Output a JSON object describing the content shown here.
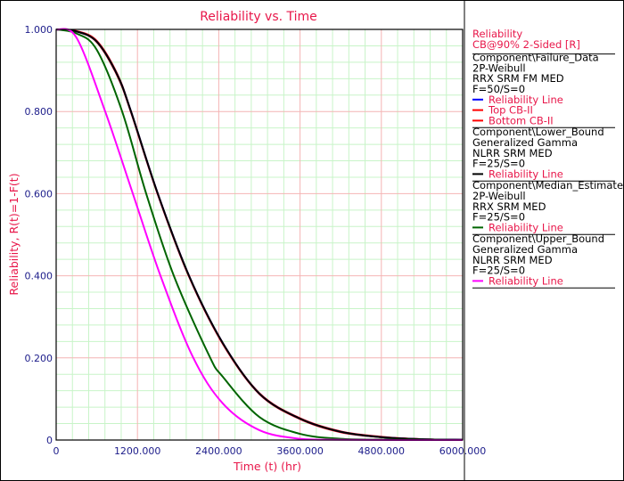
{
  "chart_data": {
    "type": "line",
    "title": "Reliability vs. Time",
    "xlabel": "Time (t) (hr)",
    "ylabel": "Reliability, R(t)=1-F(t)",
    "xlim": [
      0,
      6000
    ],
    "ylim": [
      0,
      1
    ],
    "x_ticks": [
      "0",
      "1200.000",
      "2400.000",
      "3600.000",
      "4800.000",
      "6000.000"
    ],
    "y_ticks": [
      "0",
      "0.200",
      "0.400",
      "0.600",
      "0.800",
      "1.000"
    ],
    "grid": {
      "major": true,
      "minor": true,
      "major_color": "#f4b4b4",
      "minor_color": "#c8f4c8"
    },
    "legend_placement": "right",
    "legend": {
      "header": [
        "Reliability",
        "CB@90% 2-Sided [R]"
      ],
      "groups": [
        {
          "lines": [
            "Component\\Failure_Data",
            "2P-Weibull",
            "RRX SRM FM MED",
            "F=50/S=0"
          ],
          "entries": [
            {
              "label": "Reliability Line",
              "color": "#0000ff"
            },
            {
              "label": "Top CB-II",
              "color": "#ff0000"
            },
            {
              "label": "Bottom CB-II",
              "color": "#ff0000"
            }
          ]
        },
        {
          "lines": [
            "Component\\Lower_Bound",
            "Generalized Gamma",
            "NLRR SRM  MED",
            "F=25/S=0"
          ],
          "entries": [
            {
              "label": "Reliability Line",
              "color": "#000000"
            }
          ]
        },
        {
          "lines": [
            "Component\\Median_Estimate",
            "2P-Weibull",
            "RRX SRM  MED",
            "F=25/S=0"
          ],
          "entries": [
            {
              "label": "Reliability Line",
              "color": "#006400"
            }
          ]
        },
        {
          "lines": [
            "Component\\Upper_Bound",
            "Generalized Gamma",
            "NLRR SRM  MED",
            "F=25/S=0"
          ],
          "entries": [
            {
              "label": "Reliability Line",
              "color": "#ff00ff"
            }
          ]
        }
      ]
    },
    "series": [
      {
        "name": "Component\\Failure_Data Top CB-II",
        "color": "#ff0000",
        "x": [
          0,
          300,
          600,
          900,
          1105,
          1500,
          1961,
          2460,
          3000,
          3600,
          4200,
          4800,
          5400,
          6000
        ],
        "y": [
          1,
          0.996,
          0.972,
          0.892,
          0.8,
          0.6,
          0.4,
          0.236,
          0.114,
          0.053,
          0.021,
          0.008,
          0.002,
          0.0005
        ]
      },
      {
        "name": "Component\\Failure_Data Bottom CB-II",
        "color": "#ff0000",
        "x": [
          0,
          300,
          600,
          900,
          1105,
          1500,
          1961,
          2460,
          3000,
          3600,
          4200,
          4800,
          5400,
          6000
        ],
        "y": [
          1,
          0.995,
          0.969,
          0.888,
          0.798,
          0.598,
          0.398,
          0.234,
          0.112,
          0.051,
          0.019,
          0.007,
          0.002,
          0.0004
        ]
      },
      {
        "name": "Component\\Failure_Data Reliability Line",
        "color": "#0000ff",
        "x": [
          0,
          300,
          600,
          900,
          1105,
          1500,
          1961,
          2460,
          3000,
          3600,
          4200,
          4800,
          5400,
          6000
        ],
        "y": [
          1,
          0.995,
          0.97,
          0.89,
          0.8,
          0.6,
          0.4,
          0.236,
          0.113,
          0.052,
          0.02,
          0.007,
          0.002,
          0.0005
        ]
      },
      {
        "name": "Component\\Lower_Bound",
        "color": "#000000",
        "x": [
          0,
          300,
          600,
          900,
          1105,
          1500,
          1961,
          2460,
          3000,
          3600,
          4200,
          4800,
          5400,
          6000
        ],
        "y": [
          1,
          0.995,
          0.97,
          0.89,
          0.8,
          0.6,
          0.4,
          0.236,
          0.113,
          0.052,
          0.02,
          0.007,
          0.002,
          0.0005
        ]
      },
      {
        "name": "Component\\Median_Estimate",
        "color": "#006400",
        "x": [
          0,
          300,
          600,
          974,
          1329,
          1737,
          2263,
          2460,
          3000,
          3600,
          4200,
          4800,
          6000
        ],
        "y": [
          1,
          0.99,
          0.95,
          0.8,
          0.6,
          0.4,
          0.204,
          0.154,
          0.056,
          0.015,
          0.003,
          0.001,
          0
        ]
      },
      {
        "name": "Component\\Upper_Bound",
        "color": "#ff00ff",
        "x": [
          0,
          300,
          724,
          1132,
          1540,
          2013,
          2460,
          3000,
          3600,
          4200,
          6000
        ],
        "y": [
          1,
          0.98,
          0.8,
          0.6,
          0.4,
          0.204,
          0.089,
          0.024,
          0.003,
          0.0005,
          0
        ]
      }
    ]
  }
}
